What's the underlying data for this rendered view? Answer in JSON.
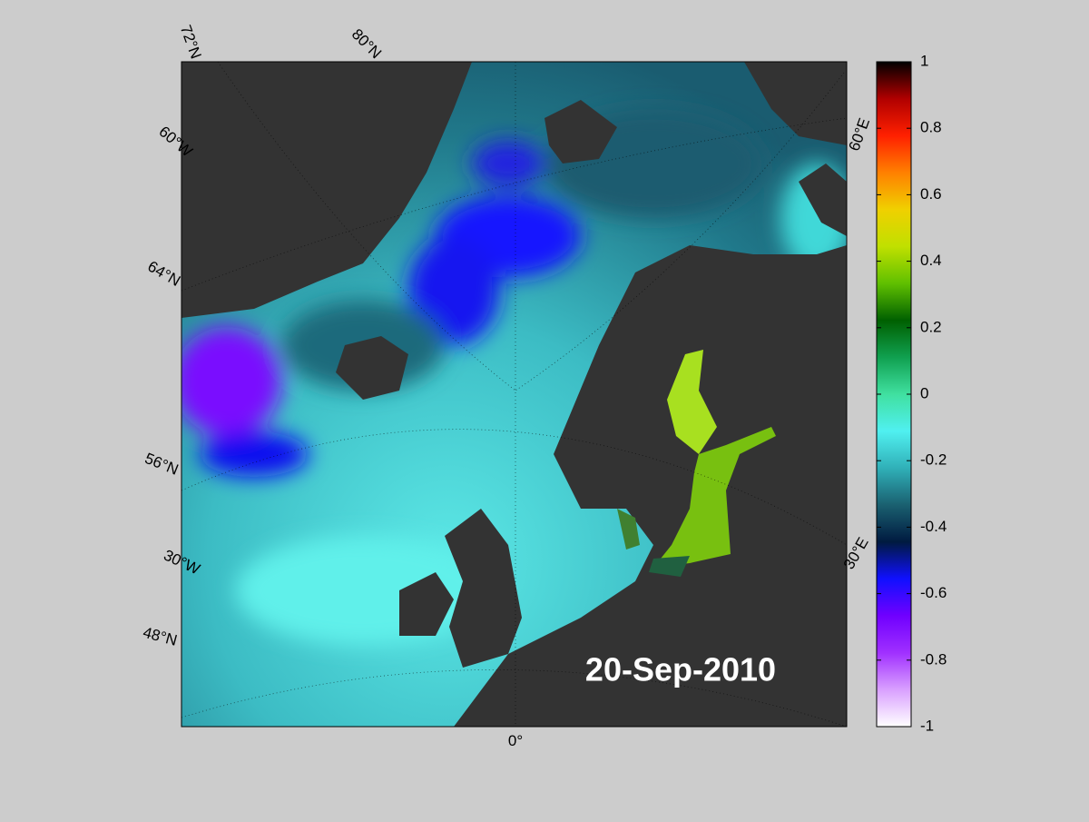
{
  "map": {
    "date_label": "20-Sep-2010",
    "graticule_labels": [
      "72°N",
      "80°N",
      "60°W",
      "64°N",
      "56°N",
      "30°W",
      "48°N",
      "0°",
      "30°E",
      "60°E"
    ],
    "colorbar": {
      "lim": [
        -1,
        1
      ],
      "ticks": [
        -1,
        -0.8,
        -0.6,
        -0.4,
        -0.2,
        0,
        0.2,
        0.4,
        0.6,
        0.8,
        1
      ],
      "colormap": [
        "#ffffff",
        "#d9a0ff",
        "#a030ff",
        "#7000ff",
        "#1010ff",
        "#001a40",
        "#1a6070",
        "#30b0b8",
        "#50f0f0",
        "#40e0a0",
        "#10a050",
        "#006000",
        "#60c000",
        "#c0e000",
        "#f0d000",
        "#ff8000",
        "#ff2000",
        "#b00000",
        "#000000"
      ]
    }
  }
}
